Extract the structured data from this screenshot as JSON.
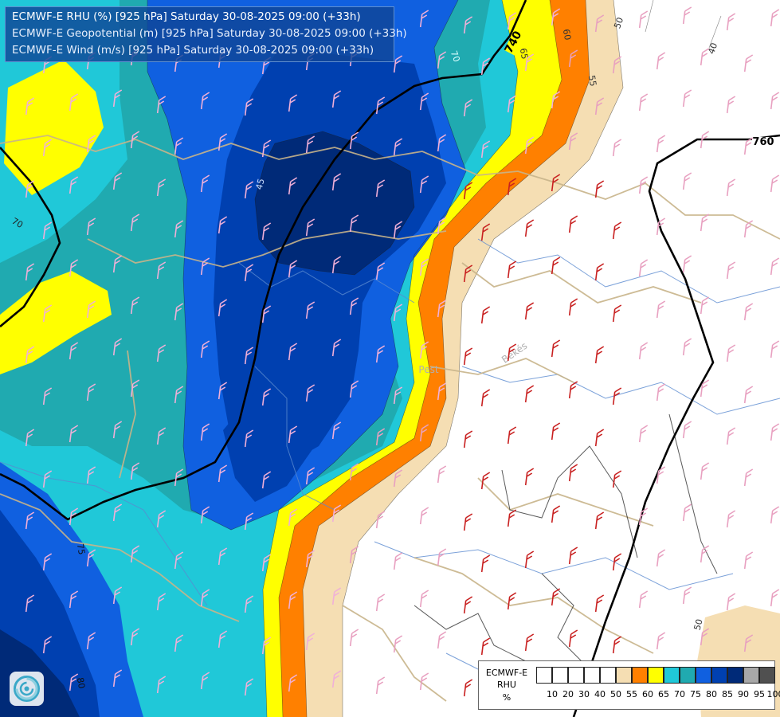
{
  "header": {
    "line1": "ECMWF-E RHU (%) [925 hPa] Saturday 30-08-2025 09:00 (+33h)",
    "line2": "ECMWF-E Geopotential (m) [925 hPa] Saturday 30-08-2025 09:00 (+33h)",
    "line3": "ECMWF-E Wind (m/s) [925 hPa] Saturday 30-08-2025 09:00 (+33h)"
  },
  "legend": {
    "title_lines": [
      "ECMWF-E",
      "RHU",
      "%"
    ],
    "swatch_colors": [
      "#ffffff",
      "#ffffff",
      "#ffffff",
      "#ffffff",
      "#ffffff",
      "#f5deb3",
      "#ff8000",
      "#ffff00",
      "#20c8d8",
      "#20aab0",
      "#1060e0",
      "#0040b0",
      "#002a78",
      "#a8a8a8",
      "#505050"
    ],
    "tick_labels": [
      "10",
      "20",
      "30",
      "40",
      "50",
      "55",
      "60",
      "65",
      "70",
      "75",
      "80",
      "85",
      "90",
      "95",
      "100"
    ]
  },
  "map": {
    "geopotential_labels": [
      "740",
      "760"
    ],
    "rhu_contour_labels": [
      "40",
      "45",
      "50",
      "50",
      "55",
      "60",
      "65",
      "70",
      "70",
      "75",
      "80"
    ],
    "place_labels": [
      "Békés",
      "Pest"
    ]
  },
  "logo": {
    "icon": "ecmwf-swirl-logo-icon"
  }
}
